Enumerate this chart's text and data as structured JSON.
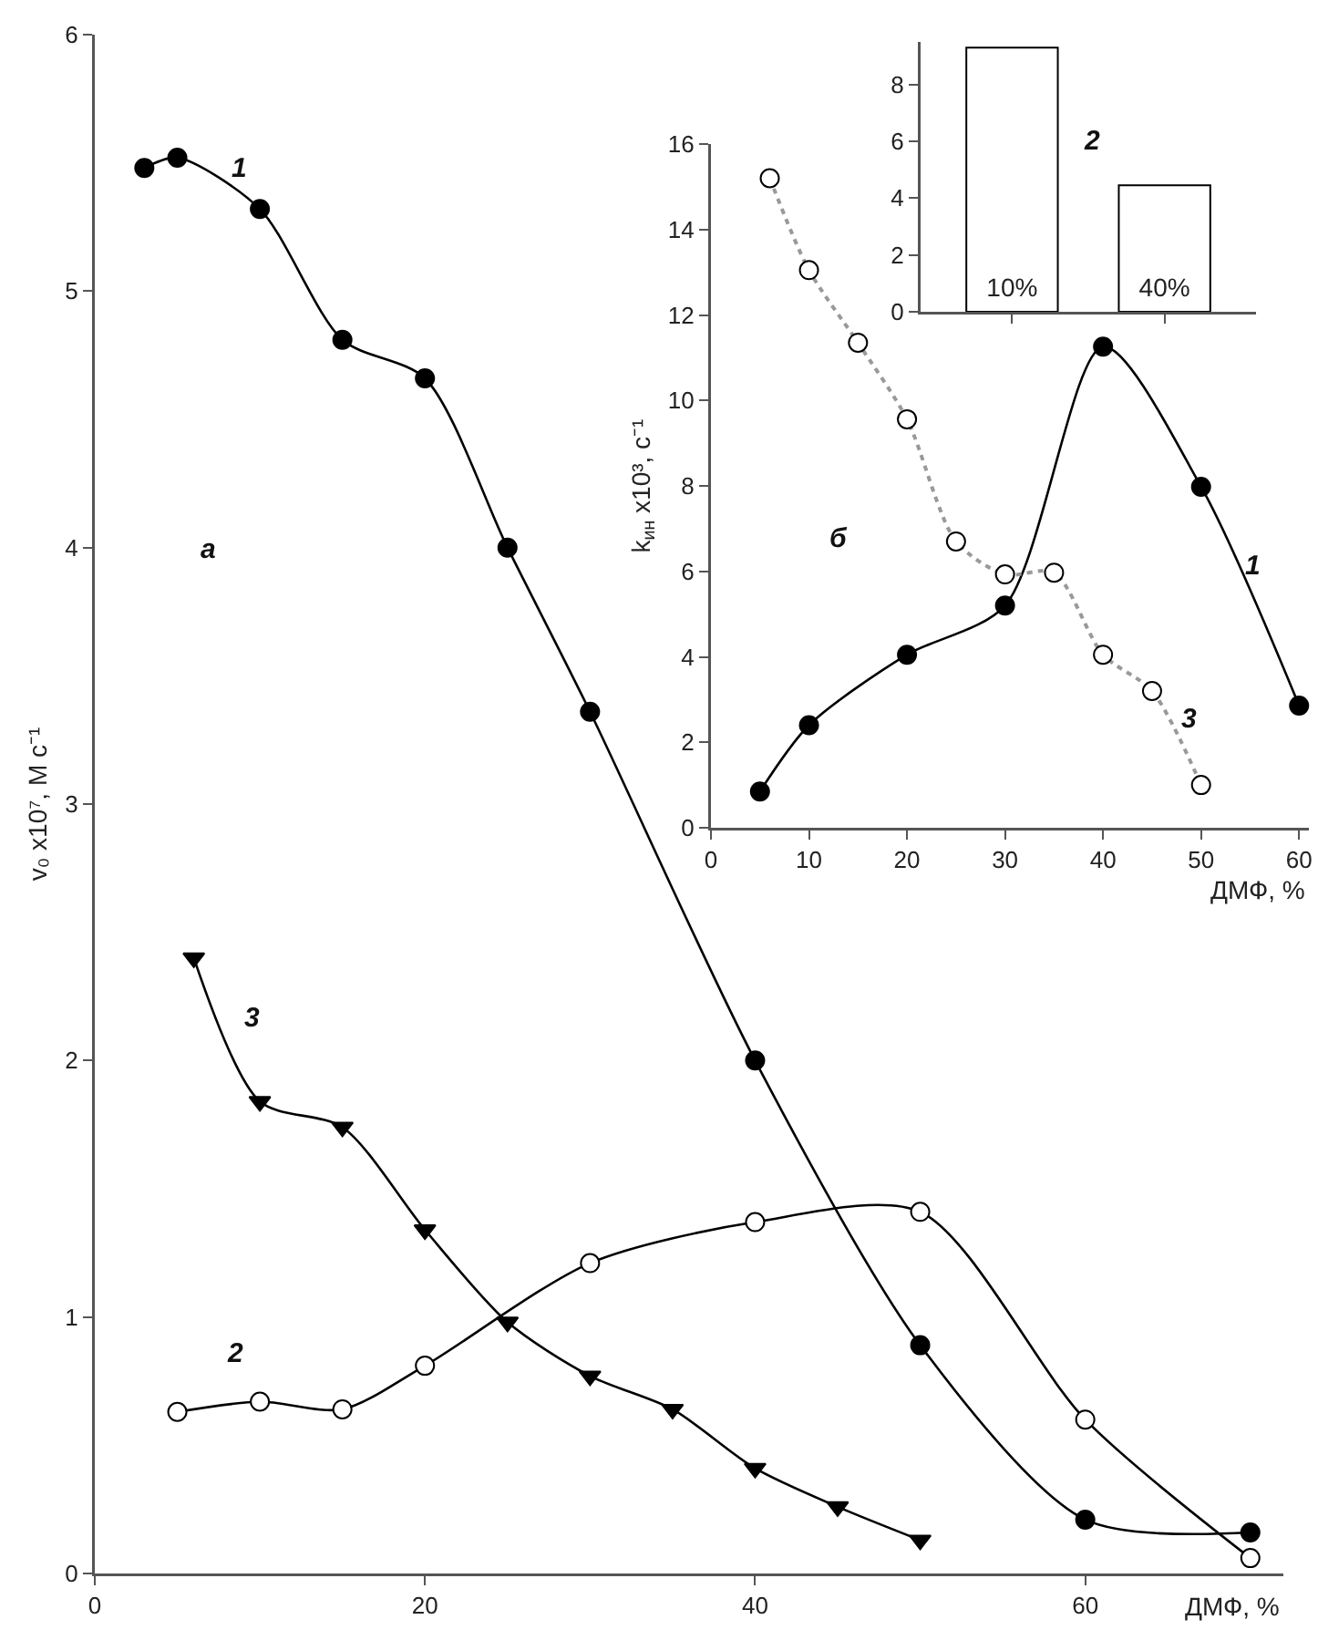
{
  "chart_data": [
    {
      "type": "line",
      "xlabel": "ДМФ, %",
      "ylabel": "v₀ x10⁷, М с⁻¹",
      "xlim": [
        0,
        72
      ],
      "xticks": [
        0,
        20,
        40,
        60
      ],
      "ylim": [
        0,
        6
      ],
      "yticks": [
        0,
        1,
        2,
        3,
        4,
        5,
        6
      ],
      "grid": false,
      "line_style": "solid",
      "annotations": [
        "1",
        "2",
        "3",
        "а"
      ],
      "series": [
        {
          "color": "#000000",
          "marker": "circle",
          "x": [
            3,
            5,
            10,
            15,
            20,
            25,
            30,
            40,
            50,
            60,
            70
          ],
          "values": [
            5.48,
            5.52,
            5.32,
            4.81,
            4.66,
            4.0,
            3.36,
            2.0,
            0.89,
            0.21,
            0.16
          ]
        },
        {
          "color": "#000000",
          "colors": [
            "#ffffff",
            "#ffffff",
            "#ffffff",
            "#ffffff",
            "#ffffff",
            "#ffffff",
            "#ffffff",
            "#ffffff",
            "#ffffff"
          ],
          "marker": "circle",
          "x": [
            5,
            10,
            15,
            20,
            30,
            40,
            50,
            60,
            70
          ],
          "values": [
            0.63,
            0.67,
            0.64,
            0.81,
            1.21,
            1.37,
            1.41,
            0.6,
            0.06
          ]
        },
        {
          "color": "#000000",
          "marker": "triangle",
          "x": [
            6,
            10,
            15,
            20,
            25,
            30,
            35,
            40,
            45,
            50
          ],
          "values": [
            2.4,
            1.84,
            1.74,
            1.34,
            0.98,
            0.77,
            0.64,
            0.41,
            0.26,
            0.13
          ]
        }
      ]
    },
    {
      "type": "line",
      "xlabel": "ДМФ, %",
      "ylabel": "k$_{ин}$ x10³, с⁻¹",
      "xlim": [
        0,
        61
      ],
      "xticks": [
        0,
        10,
        20,
        30,
        40,
        50,
        60
      ],
      "ylim": [
        0,
        16
      ],
      "yticks": [
        0,
        2,
        4,
        6,
        8,
        10,
        12,
        14,
        16
      ],
      "grid": false,
      "annotations": [
        "1",
        "3",
        "б"
      ],
      "series": [
        {
          "color": "#000000",
          "marker": "circle",
          "line_style": "solid",
          "x": [
            5,
            10,
            20,
            30,
            40,
            50,
            60
          ],
          "values": [
            0.85,
            2.4,
            4.05,
            5.2,
            11.26,
            7.98,
            2.86
          ]
        },
        {
          "color": "#999999",
          "colors": [
            "#ffffff",
            "#ffffff",
            "#ffffff",
            "#ffffff",
            "#ffffff",
            "#ffffff",
            "#ffffff",
            "#ffffff",
            "#ffffff",
            "#ffffff"
          ],
          "marker": "circle",
          "line_style": "dotted",
          "x": [
            6,
            10,
            15,
            20,
            25,
            30,
            35,
            40,
            45,
            50
          ],
          "values": [
            15.2,
            13.05,
            11.35,
            9.56,
            6.7,
            5.93,
            5.97,
            4.05,
            3.2,
            1.0
          ]
        }
      ]
    },
    {
      "type": "bar",
      "categories": [
        "10%",
        "40%"
      ],
      "values": [
        9.3,
        4.45
      ],
      "color": "#ffffff",
      "ylim": [
        0,
        9.5
      ],
      "yticks": [
        0,
        2,
        4,
        6,
        8
      ],
      "grid": false,
      "annotations": [
        "2"
      ]
    }
  ]
}
